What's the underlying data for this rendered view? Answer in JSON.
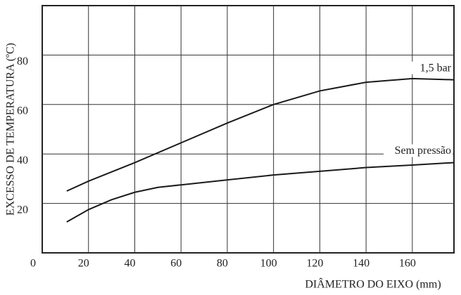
{
  "chart_data": {
    "type": "line",
    "x_label": "DIÂMETRO DO EIXO (mm)",
    "y_label": "EXCESSO DE TEMPERATURA (ºC)",
    "xlim": [
      0,
      178
    ],
    "ylim": [
      0,
      100
    ],
    "xticks": [
      0,
      20,
      40,
      60,
      80,
      100,
      120,
      140,
      160
    ],
    "yticks": [
      20,
      40,
      60,
      80
    ],
    "grid": true,
    "series": [
      {
        "name": "1,5 bar",
        "color": "#1a1a1a",
        "x": [
          10.6,
          20,
          40,
          60,
          80,
          100,
          120,
          140,
          160,
          178
        ],
        "values": [
          25,
          29,
          36.5,
          44.5,
          52.5,
          60,
          65.5,
          69,
          70.5,
          70
        ]
      },
      {
        "name": "Sem pressão",
        "color": "#1a1a1a",
        "x": [
          10.6,
          20,
          30,
          40,
          50,
          60,
          80,
          100,
          120,
          140,
          160,
          178
        ],
        "values": [
          12.5,
          17.5,
          21.5,
          24.5,
          26.5,
          27.5,
          29.5,
          31.5,
          33,
          34.5,
          35.5,
          36.5
        ]
      }
    ]
  }
}
